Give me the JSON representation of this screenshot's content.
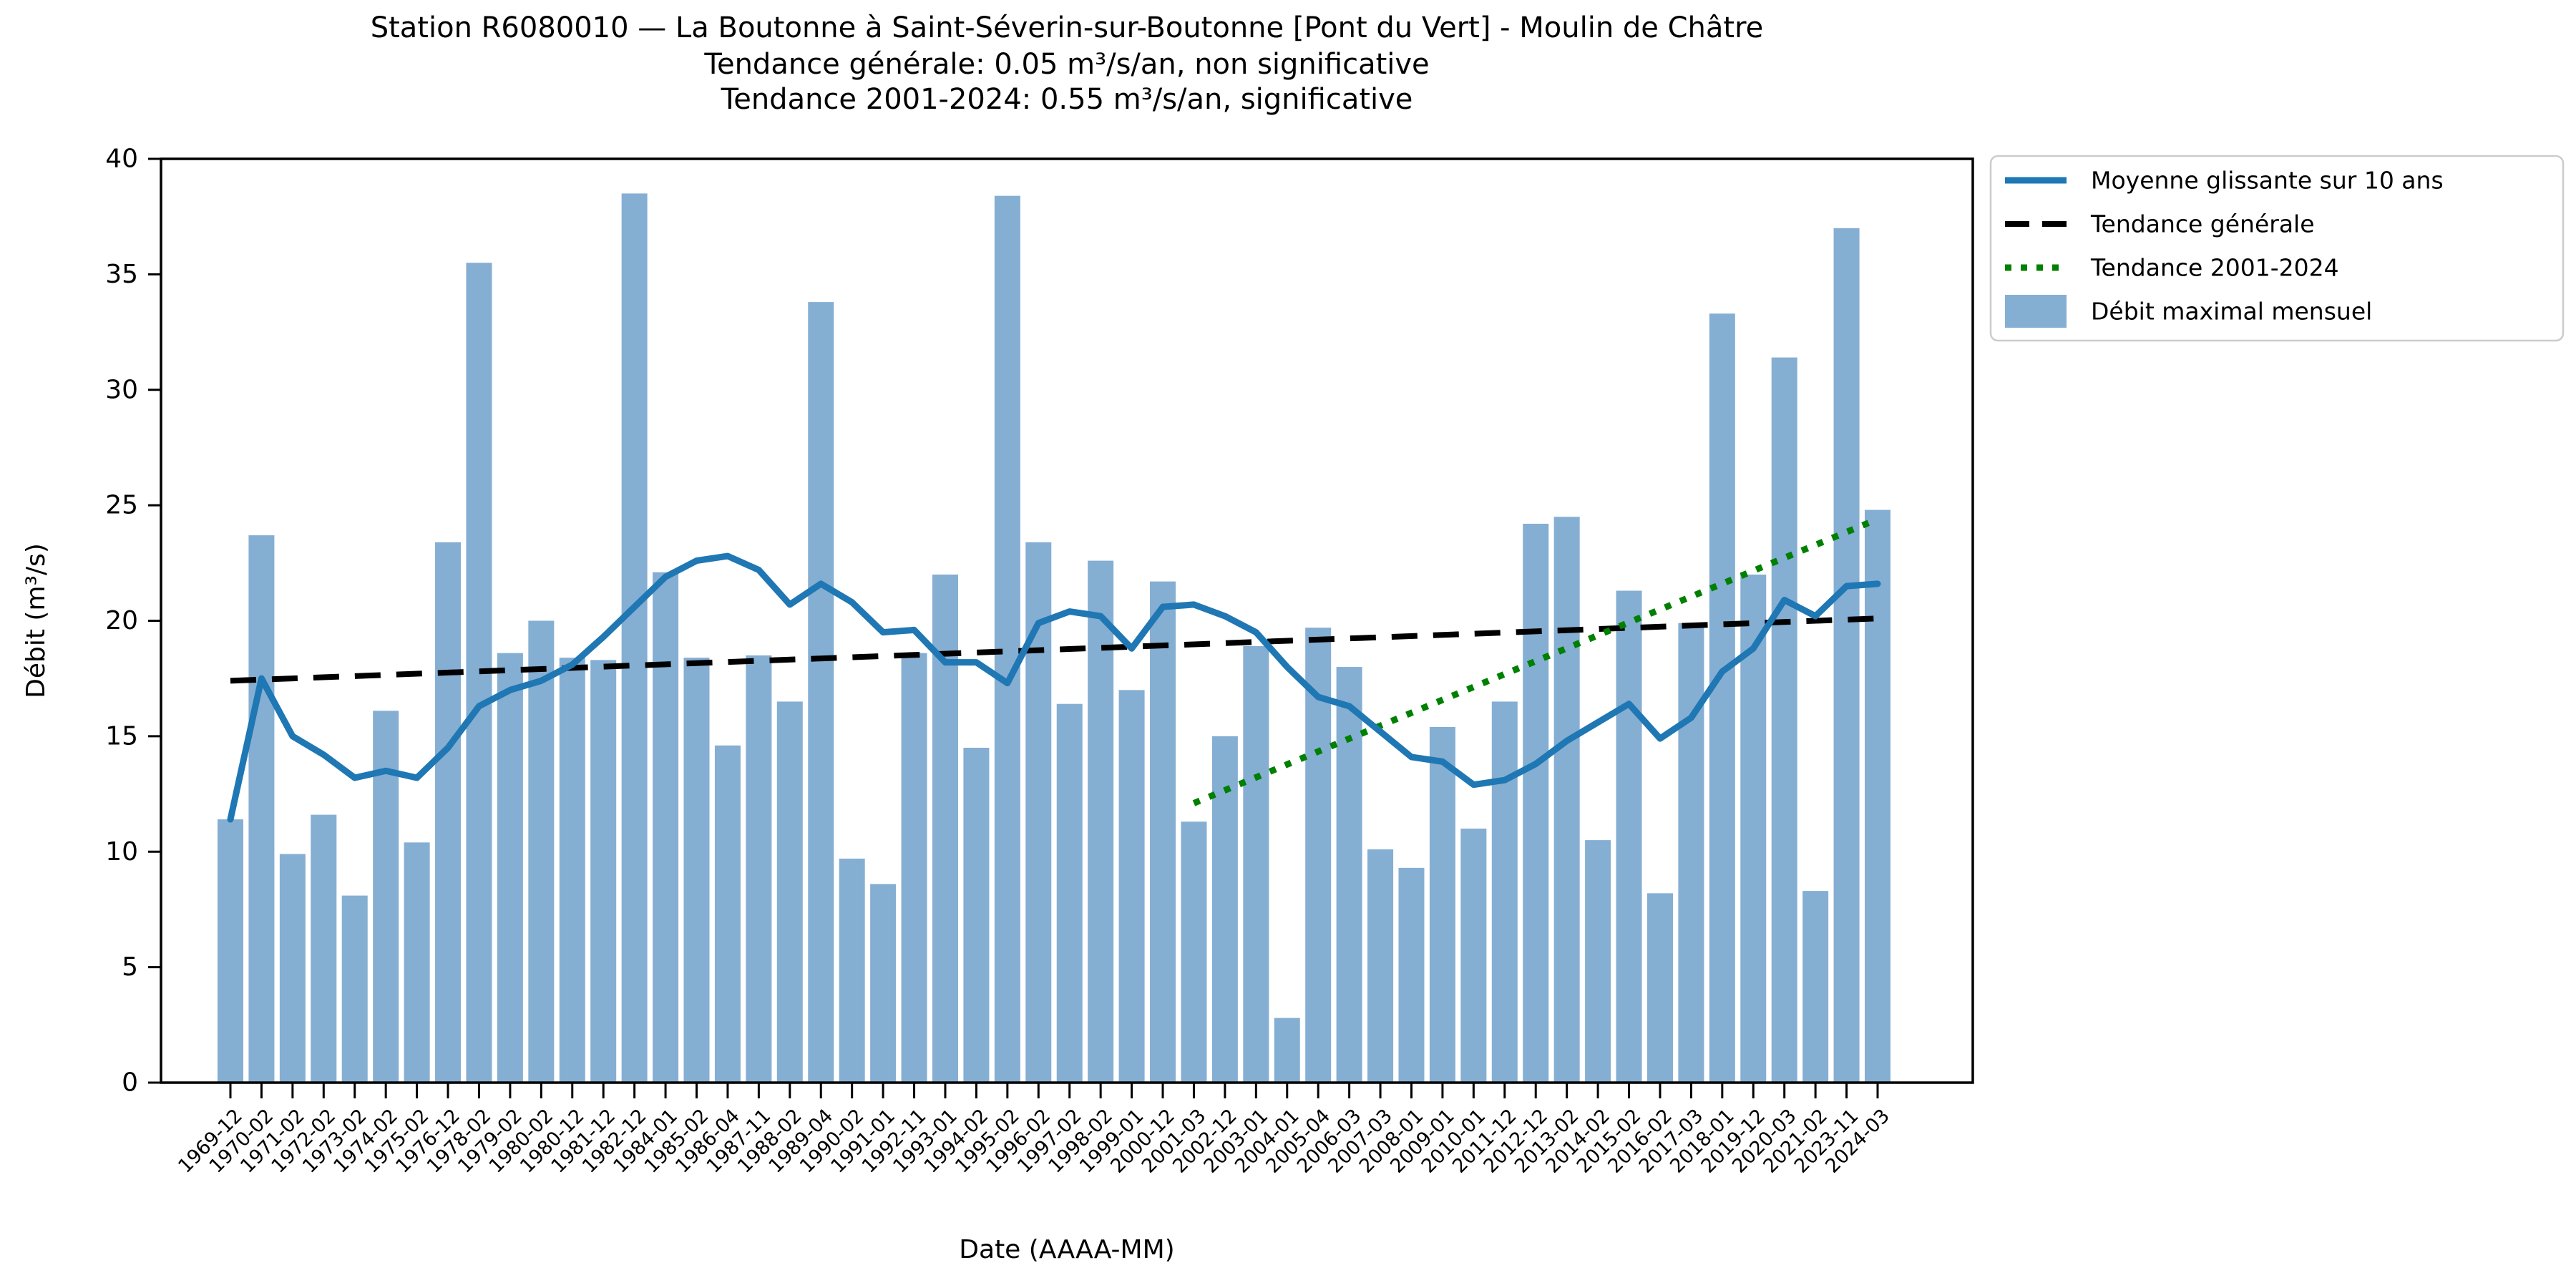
{
  "chart_data": {
    "type": "bar",
    "title_lines": [
      "Station R6080010 — La Boutonne à Saint-Séverin-sur-Boutonne [Pont du Vert] - Moulin de Châtre",
      "Tendance générale: 0.05 m³/s/an, non significative",
      "Tendance 2001-2024: 0.55 m³/s/an, significative"
    ],
    "xlabel": "Date (AAAA-MM)",
    "ylabel": "Débit (m³/s)",
    "ylim": [
      0,
      40
    ],
    "yticks": [
      0,
      5,
      10,
      15,
      20,
      25,
      30,
      35,
      40
    ],
    "grid": false,
    "legend_position": "upper-right-outside",
    "categories": [
      "1969-12",
      "1970-02",
      "1971-02",
      "1972-02",
      "1973-02",
      "1974-02",
      "1975-02",
      "1976-12",
      "1978-02",
      "1979-02",
      "1980-02",
      "1980-12",
      "1981-12",
      "1982-12",
      "1984-01",
      "1985-02",
      "1986-04",
      "1987-11",
      "1988-02",
      "1989-04",
      "1990-02",
      "1991-01",
      "1992-11",
      "1993-01",
      "1994-02",
      "1995-02",
      "1996-02",
      "1997-02",
      "1998-02",
      "1999-01",
      "2000-12",
      "2001-03",
      "2002-12",
      "2003-01",
      "2004-01",
      "2005-04",
      "2006-03",
      "2007-03",
      "2008-01",
      "2009-01",
      "2010-01",
      "2011-12",
      "2012-12",
      "2013-02",
      "2014-02",
      "2015-02",
      "2016-02",
      "2017-03",
      "2018-01",
      "2019-12",
      "2020-03",
      "2021-02",
      "2023-11",
      "2024-03"
    ],
    "series": [
      {
        "name": "Débit maximal mensuel",
        "type": "bar",
        "color": "#85aed3",
        "values": [
          11.4,
          23.7,
          9.9,
          11.6,
          8.1,
          16.1,
          10.4,
          23.4,
          35.5,
          18.6,
          20.0,
          18.4,
          18.3,
          38.5,
          22.1,
          18.4,
          14.6,
          18.5,
          16.5,
          33.8,
          9.7,
          8.6,
          18.6,
          22.0,
          14.5,
          38.4,
          23.4,
          16.4,
          22.6,
          17.0,
          21.7,
          11.3,
          15.0,
          18.9,
          2.8,
          19.7,
          18.0,
          10.1,
          9.3,
          15.4,
          11.0,
          16.5,
          24.2,
          24.5,
          10.5,
          21.3,
          8.2,
          19.9,
          33.3,
          22.0,
          31.4,
          8.3,
          37.0,
          24.8
        ]
      },
      {
        "name": "Moyenne glissante sur 10 ans",
        "type": "line",
        "color": "#1f77b4",
        "values": [
          11.4,
          17.5,
          15.0,
          14.2,
          13.2,
          13.5,
          13.2,
          14.5,
          16.3,
          17.0,
          17.4,
          18.1,
          19.3,
          20.6,
          21.9,
          22.6,
          22.8,
          22.2,
          20.7,
          21.6,
          20.8,
          19.5,
          19.6,
          18.2,
          18.2,
          17.3,
          19.9,
          20.4,
          20.2,
          18.8,
          20.6,
          20.7,
          20.2,
          19.5,
          18.0,
          16.7,
          16.3,
          15.2,
          14.1,
          13.9,
          12.9,
          13.1,
          13.8,
          14.8,
          15.6,
          16.4,
          14.9,
          15.8,
          17.8,
          18.8,
          20.9,
          20.2,
          21.5,
          21.6
        ]
      },
      {
        "name": "Tendance générale",
        "type": "trend-dashed",
        "color": "#000000",
        "start": {
          "index": 0,
          "value": 17.4
        },
        "end": {
          "index": 53,
          "value": 20.1
        }
      },
      {
        "name": "Tendance 2001-2024",
        "type": "trend-dotted",
        "color": "#008000",
        "start": {
          "index": 31,
          "value": 12.1
        },
        "end": {
          "index": 53,
          "value": 24.4
        }
      }
    ],
    "legend_entries": [
      {
        "label": "Moyenne glissante sur 10 ans",
        "style": "solid-line",
        "color": "#1f77b4"
      },
      {
        "label": "Tendance générale",
        "style": "dashed-line",
        "color": "#000000"
      },
      {
        "label": "Tendance 2001-2024",
        "style": "dotted-line",
        "color": "#008000"
      },
      {
        "label": "Débit maximal mensuel",
        "style": "patch",
        "color": "#85aed3"
      }
    ]
  }
}
